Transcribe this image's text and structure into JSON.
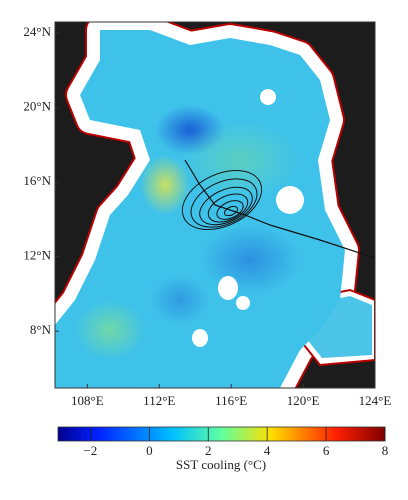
{
  "map": {
    "y_axis": {
      "lim": [
        4.95,
        24.6
      ],
      "ticks": [
        {
          "value": 24,
          "label": "24°N"
        },
        {
          "value": 20,
          "label": "20°N"
        },
        {
          "value": 16,
          "label": "16°N"
        },
        {
          "value": 12,
          "label": "12°N"
        },
        {
          "value": 8,
          "label": "8°N"
        }
      ]
    },
    "x_axis": {
      "lim": [
        106.2,
        124
      ],
      "ticks": [
        {
          "value": 108,
          "label": "108°E"
        },
        {
          "value": 112,
          "label": "112°E"
        },
        {
          "value": 116,
          "label": "116°E"
        },
        {
          "value": 120,
          "label": "120°E"
        },
        {
          "value": 124,
          "label": "124°E"
        }
      ]
    }
  },
  "colorbar": {
    "label": "SST cooling (°C)",
    "lim": [
      -3.1,
      8
    ],
    "ticks": [
      {
        "value": -2,
        "label": "−2"
      },
      0,
      2,
      4,
      6,
      8
    ]
  }
}
